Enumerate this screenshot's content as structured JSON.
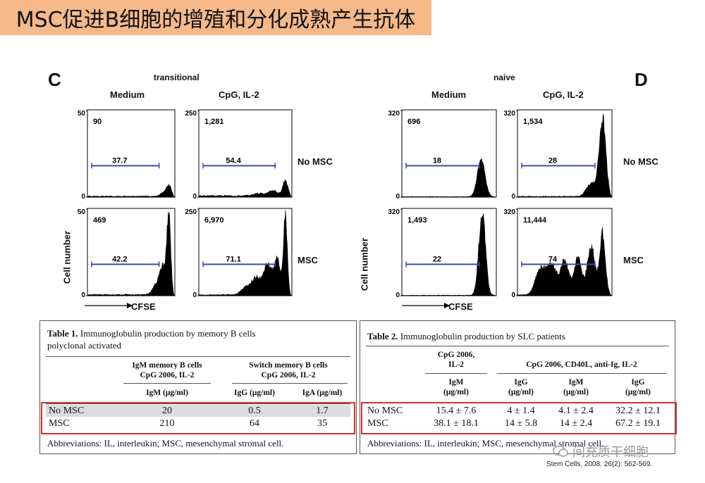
{
  "title": "MSC促进B细胞的增殖和分化成熟产生抗体",
  "panels": [
    {
      "letter": "C",
      "group_label": "transitional",
      "columns": [
        "Medium",
        "CpG, IL-2"
      ],
      "ylabel": "Cell number",
      "xlabel": "CFSE",
      "row_labels": [
        "No MSC",
        "MSC"
      ],
      "plots": [
        {
          "ymax": "50",
          "ymin": "0",
          "count": "90",
          "gate_pct": "37.7",
          "peaks": [
            [
              0.93,
              0.13,
              0.028
            ],
            [
              0.86,
              0.04,
              0.03
            ]
          ],
          "base": 0.01
        },
        {
          "ymax": "250",
          "ymin": "0",
          "count": "1,281",
          "gate_pct": "54.4",
          "peaks": [
            [
              0.93,
              0.17,
              0.028
            ],
            [
              0.8,
              0.06,
              0.045
            ],
            [
              0.65,
              0.03,
              0.06
            ]
          ],
          "base": 0.015
        },
        {
          "ymax": "50",
          "ymin": "0",
          "count": "469",
          "gate_pct": "42.2",
          "peaks": [
            [
              0.93,
              0.92,
              0.022
            ],
            [
              0.86,
              0.32,
              0.035
            ],
            [
              0.78,
              0.1,
              0.04
            ]
          ],
          "base": 0.012
        },
        {
          "ymax": "250",
          "ymin": "0",
          "count": "6,970",
          "gate_pct": "71.1",
          "peaks": [
            [
              0.93,
              0.9,
              0.02
            ],
            [
              0.84,
              0.42,
              0.035
            ],
            [
              0.74,
              0.33,
              0.04
            ],
            [
              0.62,
              0.2,
              0.05
            ],
            [
              0.5,
              0.08,
              0.05
            ]
          ],
          "base": 0.01
        }
      ]
    },
    {
      "letter": "D",
      "group_label": "naive",
      "columns": [
        "Medium",
        "CpG, IL-2"
      ],
      "ylabel": "Cell number",
      "xlabel": "CFSE",
      "row_labels": [
        "No MSC",
        "MSC"
      ],
      "plots": [
        {
          "ymax": "320",
          "ymin": "0",
          "count": "696",
          "gate_pct": "18",
          "peaks": [
            [
              0.84,
              0.42,
              0.04
            ]
          ],
          "base": 0.005
        },
        {
          "ymax": "320",
          "ymin": "0",
          "count": "1,534",
          "gate_pct": "28",
          "peaks": [
            [
              0.9,
              0.88,
              0.035
            ],
            [
              0.78,
              0.15,
              0.05
            ]
          ],
          "base": 0.008
        },
        {
          "ymax": "320",
          "ymin": "0",
          "count": "1,493",
          "gate_pct": "22",
          "peaks": [
            [
              0.85,
              0.95,
              0.035
            ]
          ],
          "base": 0.005
        },
        {
          "ymax": "320",
          "ymin": "0",
          "count": "11,444",
          "gate_pct": "74",
          "peaks": [
            [
              0.9,
              0.72,
              0.03
            ],
            [
              0.78,
              0.55,
              0.04
            ],
            [
              0.64,
              0.42,
              0.04
            ],
            [
              0.5,
              0.38,
              0.045
            ],
            [
              0.36,
              0.35,
              0.05
            ],
            [
              0.24,
              0.3,
              0.05
            ]
          ],
          "base": 0.01
        }
      ]
    }
  ],
  "table1": {
    "caption_bold": "Table 1.",
    "caption_rest_line1": "Immunoglobulin production by memory B cells",
    "caption_line2": "polyclonal activated",
    "group1": "IgM memory B cells CpG 2006, IL-2",
    "group1_line1": "IgM memory B cells",
    "group1_line2": "CpG 2006, IL-2",
    "group2_line1": "Switch memory B cells",
    "group2_line2": "CpG 2006, IL-2",
    "col_headers": [
      "IgM (μg/ml)",
      "IgG (μg/ml)",
      "IgA (μg/ml)"
    ],
    "rows": [
      {
        "label": "No MSC",
        "values": [
          "20",
          "0.5",
          "1.7"
        ]
      },
      {
        "label": "MSC",
        "values": [
          "210",
          "64",
          "35"
        ]
      }
    ],
    "footnote": "Abbreviations: IL, interleukin; MSC, mesenchymal stromal cell."
  },
  "table2": {
    "caption_bold": "Table 2.",
    "caption_rest": "Immunoglobulin production by SLC patients",
    "group1_line1": "CpG 2006,",
    "group1_line2": "IL-2",
    "group2": "CpG 2006, CD40L, anti-Ig, IL-2",
    "col_headers": [
      [
        "IgM",
        "(μg/ml)"
      ],
      [
        "IgG",
        "(μg/ml)"
      ],
      [
        "IgM",
        "(μg/ml)"
      ],
      [
        "IgG",
        "(μg/ml)"
      ]
    ],
    "rows": [
      {
        "label": "No MSC",
        "values": [
          "15.4 ± 7.6",
          "4 ± 1.4",
          "4.1 ± 2.4",
          "32.2 ± 12.1"
        ]
      },
      {
        "label": "MSC",
        "values": [
          "38.1 ± 18.1",
          "14 ± 5.8",
          "14 ± 2.4",
          "67.2 ± 19.1"
        ]
      }
    ],
    "footnote": "Abbreviations: IL, interleukin; MSC, mesenchymal stromal cell."
  },
  "citation": "Stem Cells, 2008. 26(2): 562-569.",
  "watermark": "间充质干细胞",
  "colors": {
    "banner": "#f6b98a",
    "gate": "#3a4aa8",
    "highlight": "#d9302f"
  }
}
